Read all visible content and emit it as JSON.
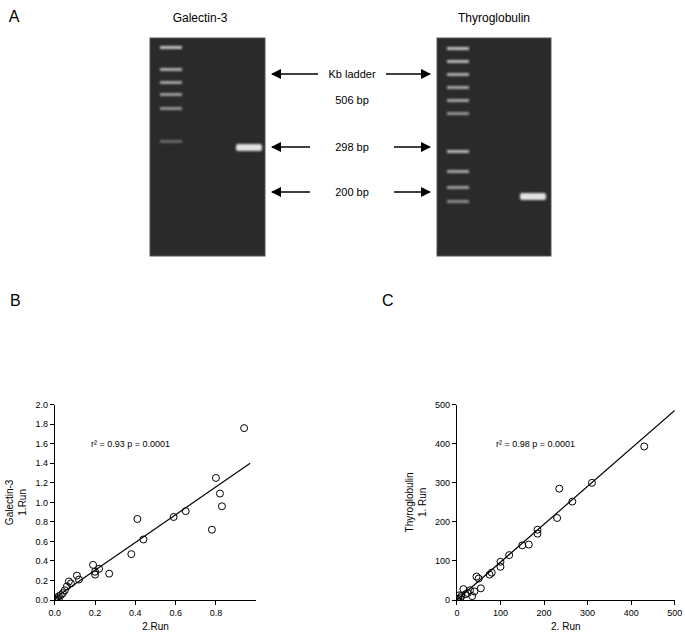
{
  "panel_a": {
    "label": "A",
    "gel_titles": [
      "Galectin-3",
      "Thyroglobulin"
    ],
    "ladder_label": "Kb ladder",
    "size_labels": [
      "506 bp",
      "298 bp",
      "200 bp"
    ]
  },
  "chart_data": [
    {
      "type": "scatter",
      "label": "B",
      "xlabel": "2.Run",
      "ylabel": [
        "Galectin-3",
        "1.Run"
      ],
      "annotations": [
        "r² = 0.93 p = 0.0001"
      ],
      "xlim": [
        0,
        1.0
      ],
      "xticks": [
        {
          "value": 0,
          "label": "0.0"
        },
        0.2,
        0.4,
        0.6,
        0.8
      ],
      "ylim": [
        0,
        2.0
      ],
      "yticks": [
        {
          "value": 0,
          "label": "0.0"
        },
        0.2,
        0.4,
        0.6,
        0.8,
        {
          "value": 1.0,
          "label": "1.0"
        },
        1.2,
        1.4,
        1.6,
        1.8,
        {
          "value": 2.0,
          "label": "2.0"
        }
      ],
      "grid": false,
      "series": [
        {
          "type": "scatter",
          "marker": "open circle",
          "color": "#000000",
          "x": [
            0.94,
            0.8,
            0.82,
            0.83,
            0.78,
            0.65,
            0.59,
            0.44,
            0.41,
            0.38,
            0.27,
            0.22,
            0.2,
            0.19,
            0.2,
            0.12,
            0.11,
            0.08,
            0.07,
            0.06,
            0.05,
            0.04,
            0.03,
            0.02,
            0.01,
            0.0,
            0.005,
            0.02
          ],
          "values": [
            1.76,
            1.25,
            1.09,
            0.96,
            0.72,
            0.91,
            0.85,
            0.62,
            0.83,
            0.47,
            0.27,
            0.32,
            0.29,
            0.36,
            0.26,
            0.21,
            0.25,
            0.17,
            0.19,
            0.14,
            0.1,
            0.07,
            0.05,
            0.04,
            0.02,
            0.01,
            0.0,
            0.0
          ]
        },
        {
          "type": "line",
          "line_style": "solid",
          "color": "#000000",
          "x": [
            0,
            0.97
          ],
          "values": [
            0.02,
            1.4
          ]
        }
      ]
    },
    {
      "type": "scatter",
      "label": "C",
      "xlabel": "2. Run",
      "ylabel": [
        "Thyroglobulin",
        "1. Run"
      ],
      "annotations": [
        "r² = 0.98 p = 0.0001"
      ],
      "xlim": [
        0,
        500
      ],
      "xticks": [
        0,
        100,
        200,
        300,
        400,
        500
      ],
      "ylim": [
        0,
        500
      ],
      "yticks": [
        0,
        100,
        200,
        300,
        400,
        500
      ],
      "grid": false,
      "series": [
        {
          "type": "scatter",
          "marker": "open circle",
          "color": "#000000",
          "x": [
            430,
            310,
            265,
            235,
            230,
            185,
            185,
            165,
            150,
            120,
            100,
            100,
            80,
            75,
            50,
            45,
            55,
            40,
            30,
            25,
            20,
            15,
            10,
            8,
            5,
            3,
            2,
            35
          ],
          "values": [
            393,
            300,
            252,
            285,
            210,
            180,
            170,
            142,
            140,
            115,
            98,
            85,
            70,
            65,
            55,
            60,
            30,
            22,
            25,
            18,
            15,
            28,
            10,
            5,
            12,
            3,
            0,
            10
          ]
        },
        {
          "type": "line",
          "line_style": "solid",
          "color": "#000000",
          "x": [
            0,
            500
          ],
          "values": [
            0,
            485
          ]
        }
      ]
    }
  ]
}
